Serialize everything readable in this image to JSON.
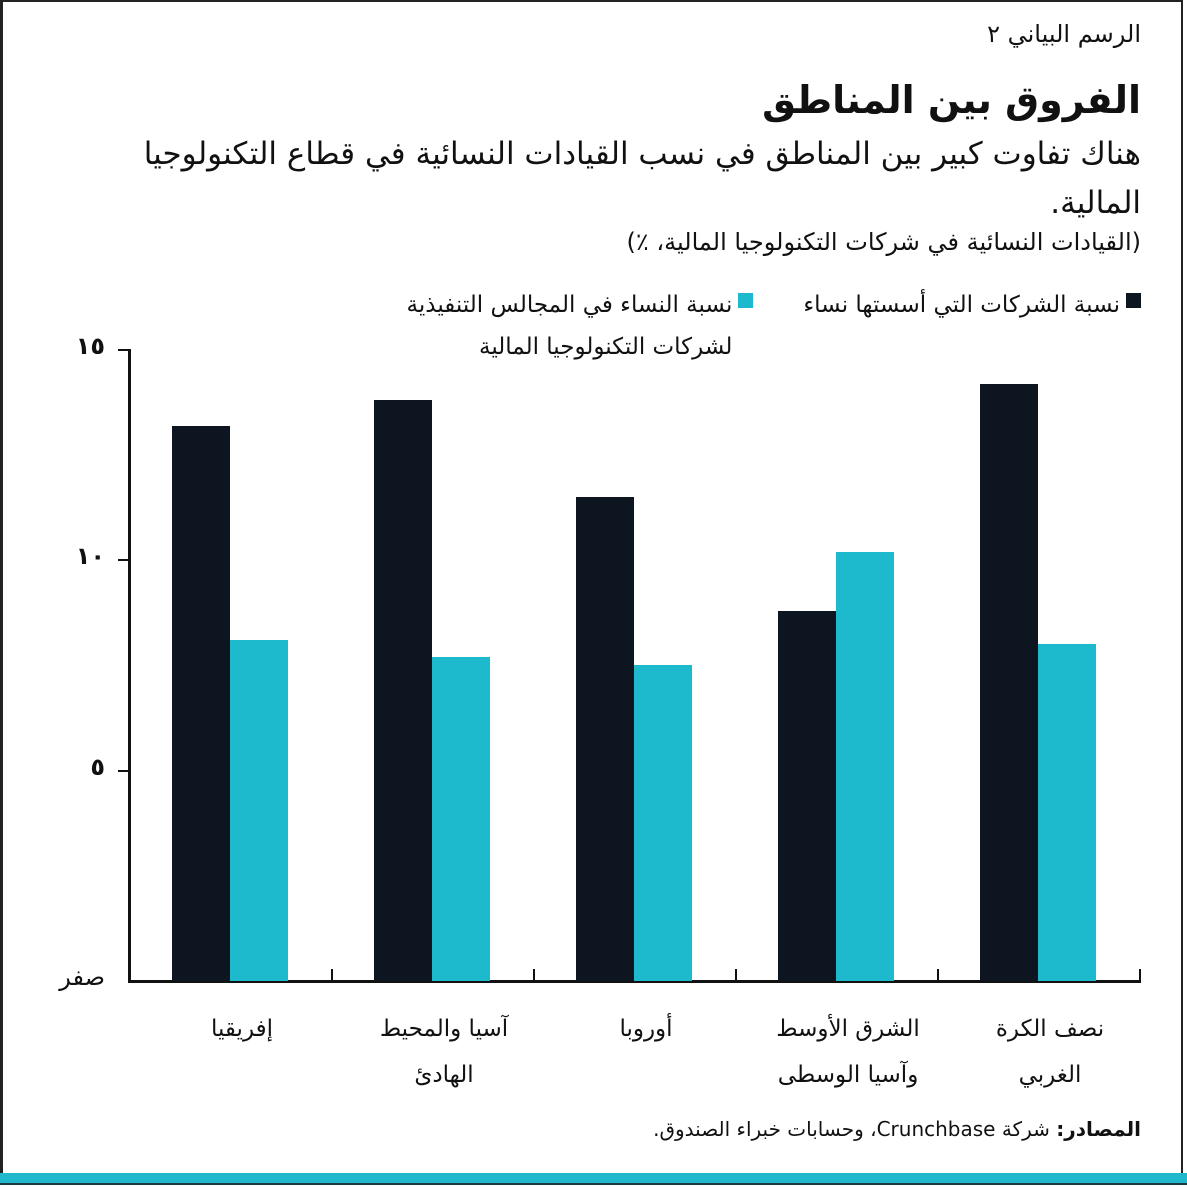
{
  "kicker": "الرسم البياني ٢",
  "title": "الفروق بين المناطق",
  "subtitle": "هناك تفاوت كبير بين المناطق في نسب القيادات النسائية في قطاع التكنولوجيا المالية.",
  "units": "(القيادات النسائية في شركات التكنولوجيا المالية، ٪)",
  "legend": [
    {
      "label": "نسبة الشركات التي أسستها نساء",
      "color": "#0d1620"
    },
    {
      "label": "نسبة النساء في المجالس التنفيذية لشركات التكنولوجيا المالية",
      "color": "#1db9cd"
    }
  ],
  "y_axis": {
    "ticks": [
      {
        "value": 15,
        "label": "١٥"
      },
      {
        "value": 10,
        "label": "١٠"
      },
      {
        "value": 5,
        "label": "٥"
      },
      {
        "value": 0,
        "label": "صفر"
      }
    ]
  },
  "source": {
    "prefix": "المصادر:",
    "text": " شركة Crunchbase، وحسابات خبراء الصندوق."
  },
  "chart_data": {
    "type": "bar",
    "title": "الفروق بين المناطق",
    "subtitle": "هناك تفاوت كبير بين المناطق في نسب القيادات النسائية في قطاع التكنولوجيا المالية.",
    "xlabel": "",
    "ylabel": "القيادات النسائية في شركات التكنولوجيا المالية، ٪",
    "ylim": [
      0,
      15
    ],
    "yticks": [
      0,
      5,
      10,
      15
    ],
    "grid": false,
    "legend_position": "top",
    "categories": [
      "إفريقيا",
      "آسيا والمحيط الهادئ",
      "أوروبا",
      "الشرق الأوسط وآسيا الوسطى",
      "نصف الكرة الغربي"
    ],
    "series": [
      {
        "name": "نسبة الشركات التي أسستها نساء",
        "color": "#0d1620",
        "values": [
          13.2,
          13.8,
          11.5,
          8.8,
          14.2
        ]
      },
      {
        "name": "نسبة النساء في المجالس التنفيذية لشركات التكنولوجيا المالية",
        "color": "#1db9cd",
        "values": [
          8.1,
          7.7,
          7.5,
          10.2,
          8.0
        ]
      }
    ],
    "source": "المصادر: شركة Crunchbase، وحسابات خبراء الصندوق."
  },
  "category_labels": [
    {
      "line1": "إفريقيا",
      "line2": ""
    },
    {
      "line1": "آسيا والمحيط",
      "line2": "الهادئ"
    },
    {
      "line1": "أوروبا",
      "line2": ""
    },
    {
      "line1": "الشرق الأوسط",
      "line2": "وآسيا الوسطى"
    },
    {
      "line1": "نصف الكرة",
      "line2": "الغربي"
    }
  ]
}
